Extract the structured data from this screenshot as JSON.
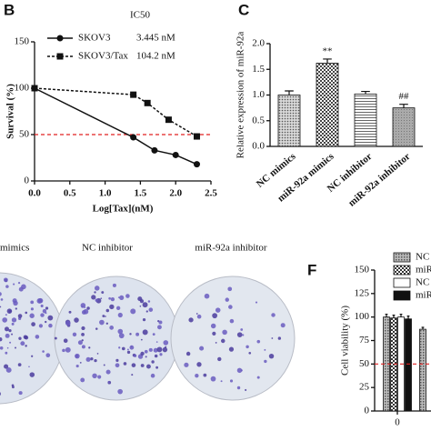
{
  "chart_data": [
    {
      "label": "B",
      "type": "line",
      "xlabel": "Log[Tax](nM)",
      "ylabel": "Survival (%)",
      "legend_title": "IC50",
      "xlim": [
        0,
        2.5
      ],
      "xticks": [
        {
          "value": 0,
          "label": "0.0"
        },
        {
          "value": 0.5,
          "label": "0.5"
        },
        {
          "value": 1,
          "label": "1.0"
        },
        {
          "value": 1.5,
          "label": "1.5"
        },
        {
          "value": 2,
          "label": "2.0"
        },
        {
          "value": 2.5,
          "label": "2.5"
        }
      ],
      "ylim": [
        0,
        150
      ],
      "yticks": [
        0,
        50,
        100,
        150
      ],
      "reference_line": {
        "y": 50,
        "color": "#e02020"
      },
      "series": [
        {
          "name": "SKOV3",
          "ic50": "3.445 nM",
          "marker": "circle",
          "line_style": "solid",
          "color": "#111111",
          "x": [
            0,
            1.4,
            1.7,
            2.0,
            2.3
          ],
          "values": [
            100,
            47,
            33,
            28,
            18
          ]
        },
        {
          "name": "SKOV3/Tax",
          "ic50": "104.2 nM",
          "marker": "square",
          "line_style": "dashed",
          "color": "#111111",
          "x": [
            0,
            1.4,
            1.6,
            1.9,
            2.3
          ],
          "values": [
            100,
            93,
            84,
            66,
            48
          ]
        }
      ]
    },
    {
      "label": "C",
      "type": "bar",
      "ylabel": "Relative expression of miR-92a",
      "categories": [
        "NC mimics",
        "miR-92a mimics",
        "NC inhibitor",
        "miR-92a inhibitor"
      ],
      "values": [
        1.0,
        1.62,
        1.02,
        0.75
      ],
      "errors": [
        0.08,
        0.08,
        0.05,
        0.07
      ],
      "annotations": [
        null,
        "**",
        null,
        "##"
      ],
      "ylim": [
        0,
        2
      ],
      "yticks": [
        {
          "value": 0,
          "label": "0.0"
        },
        {
          "value": 0.5,
          "label": "0.5"
        },
        {
          "value": 1,
          "label": "1.0"
        },
        {
          "value": 1.5,
          "label": "1.5"
        },
        {
          "value": 2,
          "label": "2.0"
        }
      ]
    },
    {
      "label": "F",
      "type": "bar",
      "ylabel": "Cell viability (%)",
      "categories": [
        "0",
        null
      ],
      "ylim": [
        0,
        150
      ],
      "yticks": [
        0,
        25,
        50,
        75,
        100,
        125,
        150
      ],
      "reference_line": {
        "y": 50,
        "color": "#e02020"
      },
      "series": [
        {
          "name": "NC",
          "values": [
            100,
            87
          ],
          "errors": [
            3,
            2
          ]
        },
        {
          "name": "miR",
          "values": [
            99,
            null
          ],
          "errors": [
            3,
            null
          ]
        },
        {
          "name": "NC",
          "values": [
            100,
            null
          ],
          "errors": [
            3,
            null
          ]
        },
        {
          "name": "miR",
          "values": [
            98,
            null
          ],
          "errors": [
            3,
            null
          ]
        }
      ]
    }
  ],
  "images": {
    "labels": [
      "mimics",
      "NC inhibitor",
      "miR-92a inhibitor"
    ]
  }
}
